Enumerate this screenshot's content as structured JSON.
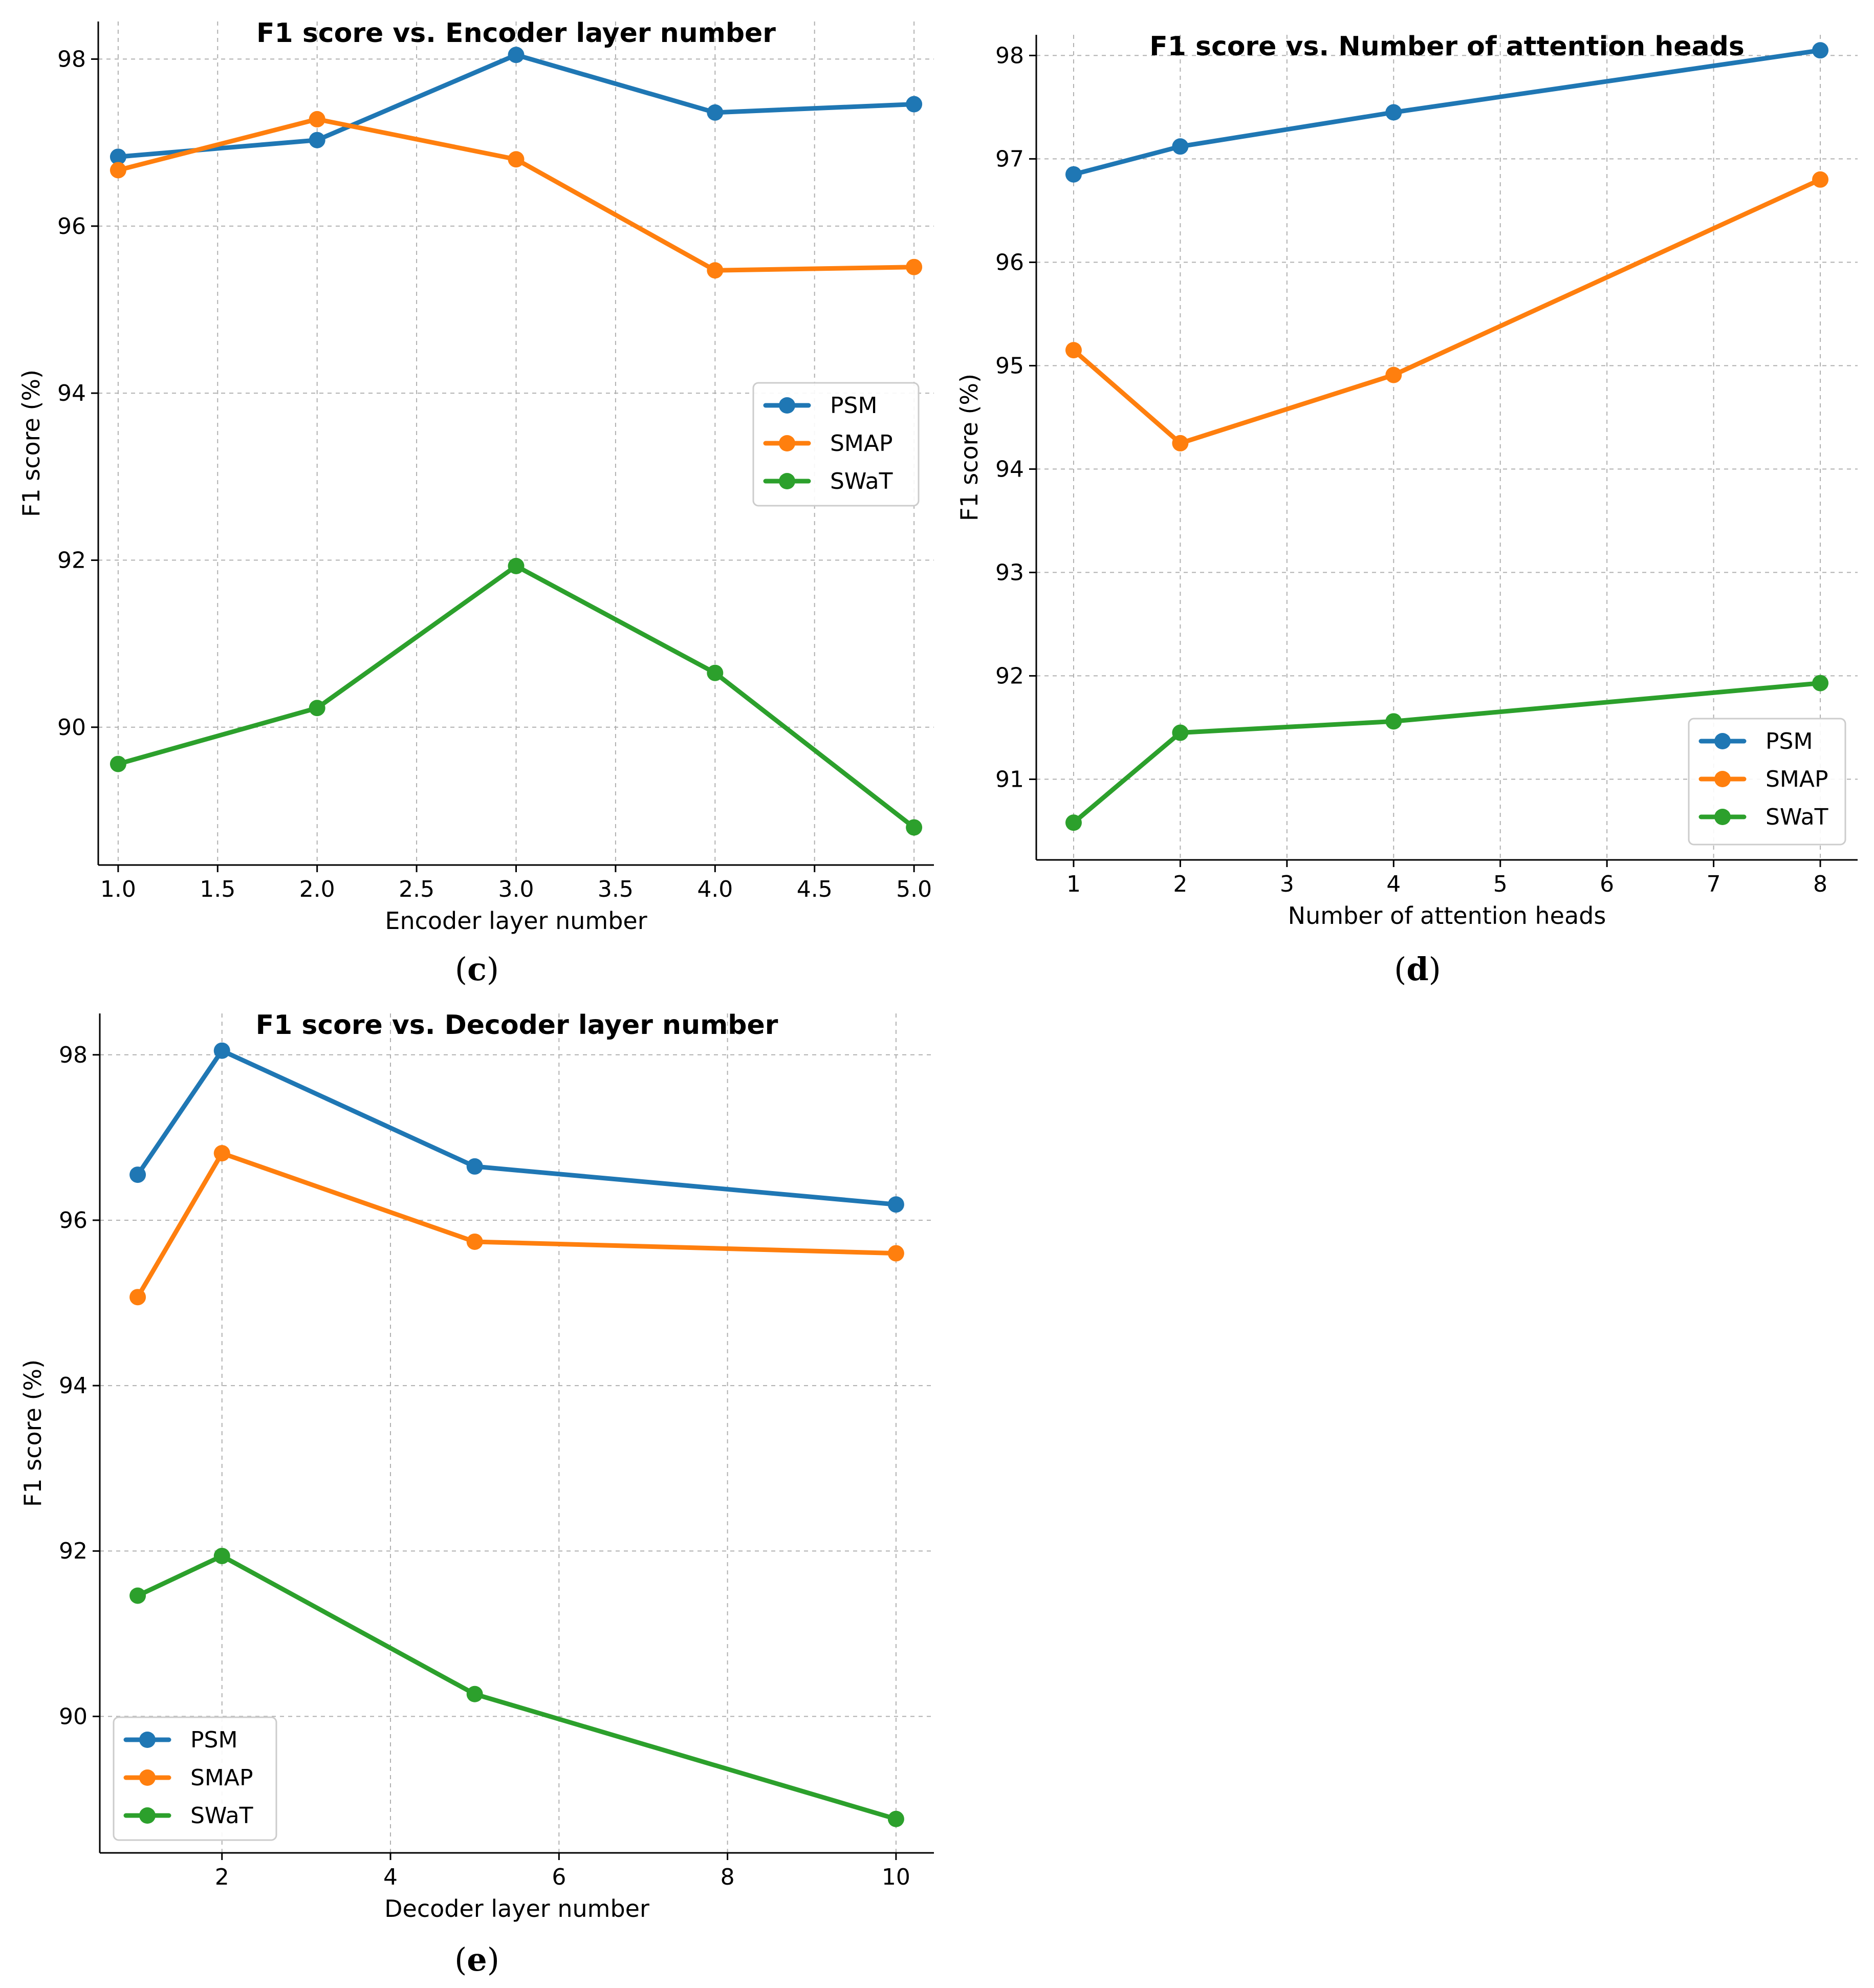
{
  "colors": {
    "PSM": "#1f77b4",
    "SMAP": "#ff7f0e",
    "SWaT": "#2ca02c"
  },
  "chart_data": [
    {
      "id": "c",
      "panel_label": "c",
      "type": "line",
      "title": "F1 score vs. Encoder layer number",
      "xlabel": "Encoder layer number",
      "ylabel": "F1 score (%)",
      "xlim": [
        0.9,
        5.1
      ],
      "ylim": [
        88.35,
        98.45
      ],
      "xticks": [
        1.0,
        1.5,
        2.0,
        2.5,
        3.0,
        3.5,
        4.0,
        4.5,
        5.0
      ],
      "xtick_labels": [
        "1.0",
        "1.5",
        "2.0",
        "2.5",
        "3.0",
        "3.5",
        "4.0",
        "4.5",
        "5.0"
      ],
      "yticks": [
        90,
        92,
        94,
        96,
        98
      ],
      "ytick_labels": [
        "90",
        "92",
        "94",
        "96",
        "98"
      ],
      "grid": true,
      "legend_position": "center-right",
      "x": [
        1,
        2,
        3,
        4,
        5
      ],
      "series": [
        {
          "name": "PSM",
          "values": [
            96.83,
            97.03,
            98.05,
            97.36,
            97.46
          ]
        },
        {
          "name": "SMAP",
          "values": [
            96.67,
            97.28,
            96.8,
            95.47,
            95.51
          ]
        },
        {
          "name": "SWaT",
          "values": [
            89.56,
            90.23,
            91.93,
            90.65,
            88.8
          ]
        }
      ]
    },
    {
      "id": "d",
      "panel_label": "d",
      "type": "line",
      "title": "F1 score vs. Number of attention heads",
      "xlabel": "Number of attention heads",
      "ylabel": "F1 score (%)",
      "xlim": [
        0.65,
        8.35
      ],
      "ylim": [
        90.22,
        98.2
      ],
      "xticks": [
        1,
        2,
        3,
        4,
        5,
        6,
        7,
        8
      ],
      "xtick_labels": [
        "1",
        "2",
        "3",
        "4",
        "5",
        "6",
        "7",
        "8"
      ],
      "yticks": [
        91,
        92,
        93,
        94,
        95,
        96,
        97,
        98
      ],
      "ytick_labels": [
        "91",
        "92",
        "93",
        "94",
        "95",
        "96",
        "97",
        "98"
      ],
      "grid": true,
      "legend_position": "lower-right",
      "x": [
        1,
        2,
        4,
        8
      ],
      "series": [
        {
          "name": "PSM",
          "values": [
            96.85,
            97.12,
            97.45,
            98.05
          ]
        },
        {
          "name": "SMAP",
          "values": [
            95.15,
            94.25,
            94.91,
            96.8
          ]
        },
        {
          "name": "SWaT",
          "values": [
            90.58,
            91.45,
            91.56,
            91.93
          ]
        }
      ]
    },
    {
      "id": "e",
      "panel_label": "e",
      "type": "line",
      "title": "F1 score vs. Decoder layer number",
      "xlabel": "Decoder layer number",
      "ylabel": "F1 score (%)",
      "xlim": [
        0.55,
        10.45
      ],
      "ylim": [
        88.35,
        98.5
      ],
      "xticks": [
        2,
        4,
        6,
        8,
        10
      ],
      "xtick_labels": [
        "2",
        "4",
        "6",
        "8",
        "10"
      ],
      "yticks": [
        90,
        92,
        94,
        96,
        98
      ],
      "ytick_labels": [
        "90",
        "92",
        "94",
        "96",
        "98"
      ],
      "grid": true,
      "legend_position": "lower-left",
      "x": [
        1,
        2,
        5,
        10
      ],
      "series": [
        {
          "name": "PSM",
          "values": [
            96.55,
            98.05,
            96.65,
            96.19
          ]
        },
        {
          "name": "SMAP",
          "values": [
            95.07,
            96.81,
            95.74,
            95.6
          ]
        },
        {
          "name": "SWaT",
          "values": [
            91.46,
            91.94,
            90.27,
            88.76
          ]
        }
      ]
    }
  ]
}
